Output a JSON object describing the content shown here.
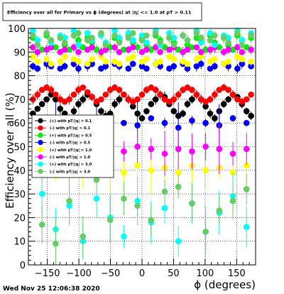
{
  "page_title": "Efficiency over all for Primary vs ϕ (degrees) at |η| <= 1.0 at pT > 0.11",
  "footer_date": "Wed Nov 25 12:06:38 2020",
  "chart_data": {
    "type": "scatter",
    "title": "Efficiency over all for Primary vs ϕ (degrees) at |η| <= 1.0 at pT > 0.11",
    "xlabel": "ϕ (degrees)",
    "ylabel": "Efficiency over all (%)",
    "xlim": [
      -180,
      180
    ],
    "ylim": [
      0,
      100
    ],
    "xticks": [
      -150,
      -100,
      -50,
      0,
      50,
      100,
      150
    ],
    "xtick_labels": [
      "−150",
      "−100",
      "−50",
      "0",
      "50",
      "100",
      "150"
    ],
    "yticks": [
      0,
      10,
      20,
      30,
      40,
      50,
      60,
      70,
      80,
      90,
      100
    ],
    "grid": true,
    "legend_position": "middle-left",
    "x": [
      -172.8,
      -165.6,
      -158.4,
      -151.2,
      -144.0,
      -136.8,
      -129.6,
      -122.4,
      -115.2,
      -108.0,
      -100.8,
      -93.6,
      -86.4,
      -79.2,
      -72.0,
      -64.8,
      -57.6,
      -50.4,
      -43.2,
      -36.0,
      -28.8,
      -21.6,
      -14.4,
      -7.2,
      0.0,
      7.2,
      14.4,
      21.6,
      28.8,
      36.0,
      43.2,
      50.4,
      57.6,
      64.8,
      72.0,
      79.2,
      86.4,
      93.6,
      100.8,
      108.0,
      115.2,
      122.4,
      129.6,
      136.8,
      144.0,
      151.2,
      158.4,
      165.6,
      172.8
    ],
    "series": [
      {
        "name": "(+) with pT/|q| > 0.1",
        "color": "#000000",
        "marker": "circle",
        "values": [
          64,
          66,
          68,
          70,
          72,
          70,
          66,
          64,
          62,
          65,
          68,
          70,
          72,
          71,
          68,
          65,
          63,
          64,
          68,
          70,
          72,
          70,
          67,
          64,
          62,
          65,
          68,
          70,
          72,
          71,
          68,
          65,
          63,
          64,
          68,
          70,
          72,
          70,
          67,
          64,
          62,
          65,
          68,
          70,
          72,
          71,
          68,
          65,
          63
        ]
      },
      {
        "name": "(-) with pT/|q| > 0.1",
        "color": "#ff0000",
        "marker": "circle",
        "values": [
          70,
          72,
          74,
          75,
          74,
          72,
          70,
          69,
          70,
          72,
          74,
          75,
          73,
          71,
          69,
          70,
          72,
          74,
          75,
          74,
          72,
          70,
          69,
          70,
          72,
          74,
          75,
          74,
          72,
          70,
          69,
          70,
          72,
          74,
          75,
          74,
          72,
          70,
          69,
          70,
          72,
          74,
          75,
          74,
          72,
          70,
          69,
          70,
          72
        ]
      },
      {
        "name": "(+) with pT/|q| > 0.5",
        "color": "#00ee00",
        "marker": "circle",
        "values": [
          96,
          95,
          91,
          97,
          94,
          92,
          96,
          93,
          91,
          97,
          95,
          92,
          96,
          94,
          91,
          97,
          93,
          92,
          96,
          95,
          91,
          97,
          94,
          92,
          96,
          93,
          91,
          97,
          95,
          92,
          96,
          94,
          91,
          97,
          93,
          92,
          96,
          95,
          91,
          97,
          94,
          92,
          96,
          93,
          91,
          97,
          95,
          92,
          96
        ]
      },
      {
        "name": "(-) with pT/|q| > 0.5",
        "color": "#0000ff",
        "marker": "circle",
        "values": [
          84,
          83,
          60,
          85,
          84,
          59,
          83,
          84,
          62,
          85,
          83,
          60,
          84,
          85,
          58,
          83,
          84,
          61,
          85,
          84,
          60,
          83,
          85,
          59,
          84,
          83,
          62,
          85,
          84,
          60,
          83,
          84,
          58,
          85,
          83,
          61,
          84,
          85,
          60,
          83,
          84,
          59,
          85,
          84,
          62,
          83,
          85,
          60,
          84
        ]
      },
      {
        "name": "(+) with pT/|q| > 1.0",
        "color": "#ffff00",
        "marker": "circle",
        "values": [
          88,
          86,
          40,
          87,
          85,
          41,
          86,
          88,
          39,
          87,
          86,
          42,
          85,
          87,
          40,
          88,
          86,
          41,
          86,
          85,
          39,
          87,
          88,
          42,
          86,
          87,
          40,
          85,
          86,
          41,
          88,
          87,
          39,
          86,
          85,
          42,
          87,
          88,
          40,
          86,
          87,
          41,
          85,
          86,
          39,
          88,
          87,
          42,
          86
        ]
      },
      {
        "name": "(-) with pT/|q| > 1.0",
        "color": "#ff00ff",
        "marker": "circle",
        "values": [
          92,
          90,
          49,
          91,
          92,
          48,
          90,
          91,
          50,
          92,
          90,
          49,
          91,
          92,
          47,
          90,
          91,
          49,
          92,
          90,
          48,
          91,
          92,
          50,
          90,
          91,
          49,
          92,
          90,
          47,
          91,
          92,
          49,
          90,
          91,
          48,
          92,
          90,
          50,
          91,
          92,
          49,
          90,
          91,
          47,
          92,
          90,
          49,
          91
        ]
      },
      {
        "name": "(+) with pT/|q| > 3.0",
        "color": "#00ffff",
        "marker": "circle",
        "values": [
          99,
          95,
          30,
          98,
          94,
          15,
          97,
          96,
          25,
          99,
          93,
          10,
          98,
          95,
          28,
          97,
          94,
          20,
          99,
          96,
          12,
          98,
          95,
          27,
          97,
          94,
          18,
          99,
          93,
          24,
          98,
          96,
          10,
          97,
          95,
          26,
          99,
          94,
          14,
          98,
          93,
          22,
          97,
          96,
          29,
          99,
          95,
          16,
          98
        ]
      },
      {
        "name": "(-) with pT/|q| > 3.0",
        "color": "#66cc66",
        "marker": "circle",
        "values": [
          97,
          93,
          17,
          98,
          95,
          9,
          96,
          94,
          27,
          97,
          98,
          12,
          95,
          96,
          36,
          98,
          93,
          19,
          97,
          94,
          28,
          96,
          98,
          25,
          95,
          97,
          19,
          98,
          94,
          31,
          96,
          93,
          33,
          97,
          95,
          26,
          98,
          96,
          14,
          95,
          97,
          23,
          96,
          94,
          27,
          98,
          93,
          32,
          97
        ]
      }
    ]
  }
}
